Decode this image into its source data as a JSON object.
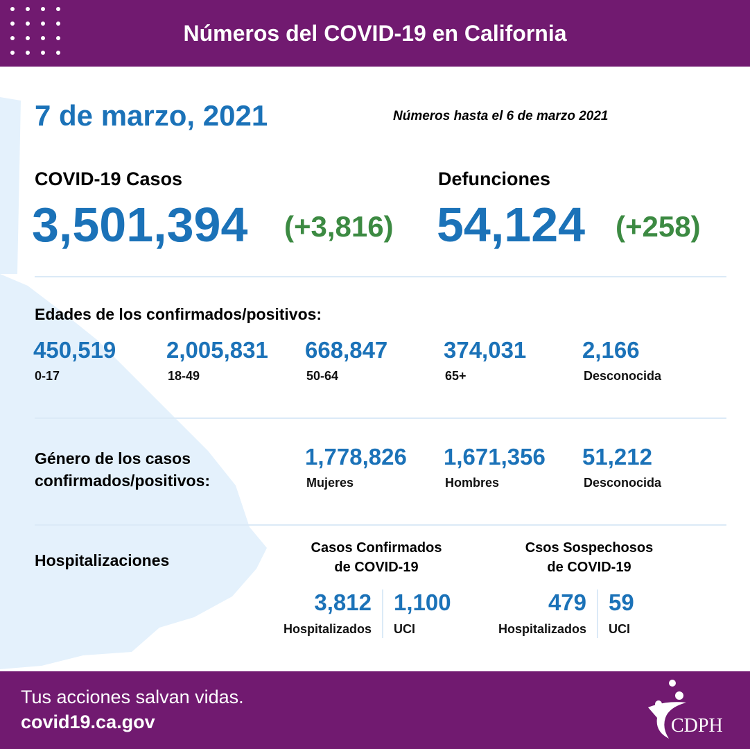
{
  "header": {
    "title": "Números del COVID-19 en California"
  },
  "date": "7 de marzo, 2021",
  "as_of": "Números hasta el 6 de marzo 2021",
  "cases": {
    "label": "COVID-19 Casos",
    "total": "3,501,394",
    "change": "(+3,816)"
  },
  "deaths": {
    "label": "Defunciones",
    "total": "54,124",
    "change": "(+258)"
  },
  "ages": {
    "label": "Edades de los confirmados/positivos:",
    "groups": [
      {
        "value": "450,519",
        "label": "0-17"
      },
      {
        "value": "2,005,831",
        "label": "18-49"
      },
      {
        "value": "668,847",
        "label": "50-64"
      },
      {
        "value": "374,031",
        "label": "65+"
      },
      {
        "value": "2,166",
        "label": "Desconocida"
      }
    ]
  },
  "gender": {
    "label": [
      "Género de los casos",
      "confirmados/positivos:"
    ],
    "groups": [
      {
        "value": "1,778,826",
        "label": "Mujeres"
      },
      {
        "value": "1,671,356",
        "label": "Hombres"
      },
      {
        "value": "51,212",
        "label": "Desconocida"
      }
    ]
  },
  "hospitalizations": {
    "label": "Hospitalizaciones",
    "confirmed": {
      "title": [
        "Casos Confirmados",
        "de COVID-19"
      ],
      "hospitalized": {
        "value": "3,812",
        "label": "Hospitalizados"
      },
      "icu": {
        "value": "1,100",
        "label": "UCI"
      }
    },
    "suspected": {
      "title": [
        "Csos Sospechosos",
        "de COVID-19"
      ],
      "hospitalized": {
        "value": "479",
        "label": "Hospitalizados"
      },
      "icu": {
        "value": "59",
        "label": "UCI"
      }
    }
  },
  "footer": {
    "tagline": "Tus acciones salvan vidas.",
    "url": "covid19.ca.gov",
    "logo": "CDPH"
  }
}
